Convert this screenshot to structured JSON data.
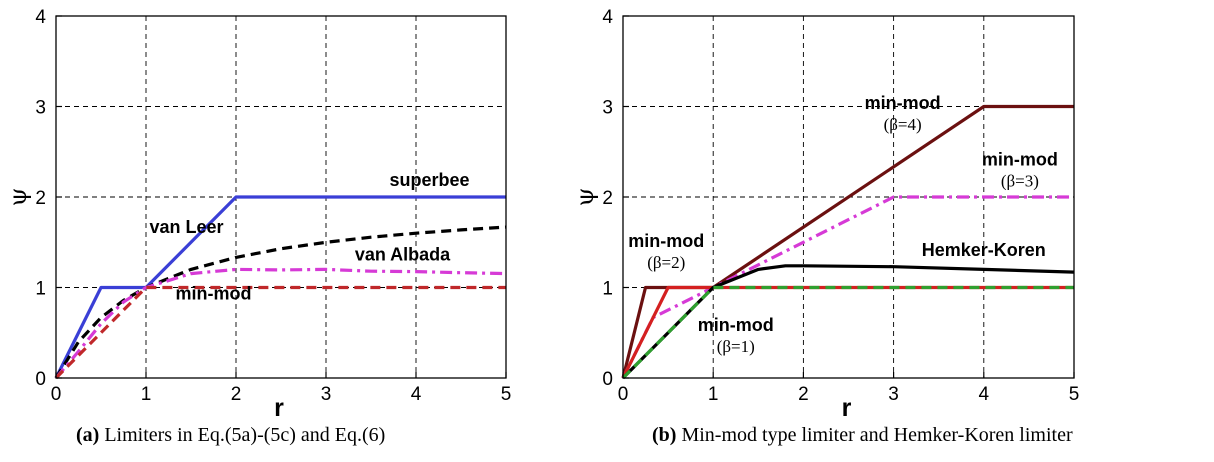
{
  "captions": [
    {
      "tag": "(a)",
      "text": " Limiters in Eq.(5a)-(5c) and Eq.(6)"
    },
    {
      "tag": "(b)",
      "text": " Min-mod type limiter and Hemker-Koren limiter"
    }
  ],
  "chart_data": [
    {
      "type": "line",
      "xlabel": "r",
      "ylabel": "ψ",
      "xlim": [
        0,
        5
      ],
      "ylim": [
        0,
        4
      ],
      "xticks": [
        "0",
        "1",
        "2",
        "3",
        "4",
        "5"
      ],
      "yticks": [
        "0",
        "1",
        "2",
        "3",
        "4"
      ],
      "grid": true,
      "series": [
        {
          "name": "superbee",
          "color": "#3a3fd6",
          "style": "solid",
          "x": [
            0,
            0.5,
            1,
            2,
            5
          ],
          "y": [
            0,
            1,
            1,
            2,
            2
          ]
        },
        {
          "name": "van Leer",
          "color": "#000000",
          "style": "dash",
          "x": [
            0,
            0.25,
            0.5,
            0.75,
            1,
            1.5,
            2,
            2.5,
            3,
            3.5,
            4,
            4.5,
            5
          ],
          "y": [
            0,
            0.4,
            0.667,
            0.857,
            1,
            1.2,
            1.333,
            1.429,
            1.5,
            1.556,
            1.6,
            1.636,
            1.667
          ]
        },
        {
          "name": "van Albada",
          "color": "#d63ad6",
          "style": "dashdot",
          "x": [
            0,
            0.25,
            0.5,
            0.75,
            1,
            1.5,
            2,
            2.5,
            3,
            3.5,
            4,
            4.5,
            5
          ],
          "y": [
            0,
            0.294,
            0.6,
            0.84,
            1,
            1.154,
            1.2,
            1.195,
            1.2,
            1.18,
            1.176,
            1.163,
            1.154
          ]
        },
        {
          "name": "min-mod",
          "color": "#c0282a",
          "style": "dash",
          "x": [
            0,
            1,
            5
          ],
          "y": [
            0,
            1,
            1
          ]
        }
      ],
      "annotations": [
        {
          "text": "superbee",
          "x": 4.15,
          "y": 2.12
        },
        {
          "text": "van Leer",
          "x": 1.45,
          "y": 1.6
        },
        {
          "text": "van Albada",
          "x": 3.85,
          "y": 1.3
        },
        {
          "text": "min-mod",
          "x": 1.75,
          "y": 0.87
        }
      ]
    },
    {
      "type": "line",
      "xlabel": "r",
      "ylabel": "ψ",
      "xlim": [
        0,
        5
      ],
      "ylim": [
        0,
        4
      ],
      "xticks": [
        "0",
        "1",
        "2",
        "3",
        "4",
        "5"
      ],
      "yticks": [
        "0",
        "1",
        "2",
        "3",
        "4"
      ],
      "grid": true,
      "series": [
        {
          "name": "min-mod (β=4)",
          "color": "#6b1010",
          "style": "solid",
          "x": [
            0,
            0.25,
            1,
            4,
            5
          ],
          "y": [
            0,
            1,
            1,
            3,
            3
          ]
        },
        {
          "name": "min-mod (β=3)",
          "color": "#d63ad6",
          "style": "dashdot",
          "x": [
            0,
            0.333,
            1,
            3,
            5
          ],
          "y": [
            0,
            0.667,
            1,
            2,
            2
          ]
        },
        {
          "name": "min-mod (β=2)",
          "color": "#d42020",
          "style": "solid",
          "x": [
            0,
            0.5,
            1,
            5
          ],
          "y": [
            0,
            1,
            1,
            1
          ]
        },
        {
          "name": "Hemker-Koren",
          "color": "#000000",
          "style": "solid",
          "x": [
            0,
            0.25,
            0.5,
            0.75,
            1,
            1.5,
            1.8,
            2,
            3,
            4,
            5
          ],
          "y": [
            0,
            0.25,
            0.5,
            0.75,
            1,
            1.2,
            1.24,
            1.24,
            1.23,
            1.2,
            1.17
          ]
        },
        {
          "name": "min-mod (β=1)",
          "color": "#2fa02f",
          "style": "dash",
          "x": [
            0,
            1,
            5
          ],
          "y": [
            0,
            1,
            1
          ]
        }
      ],
      "annotations": [
        {
          "text": "min-mod",
          "sub": "(β=4)",
          "x": 3.1,
          "y": 2.97
        },
        {
          "text": "min-mod",
          "sub": "(β=3)",
          "x": 4.4,
          "y": 2.35
        },
        {
          "text": "Hemker-Koren",
          "x": 4.0,
          "y": 1.35
        },
        {
          "text": "min-mod",
          "sub": "(β=2)",
          "x": 0.48,
          "y": 1.45
        },
        {
          "text": "min-mod",
          "sub": "(β=1)",
          "x": 1.25,
          "y": 0.52
        }
      ]
    }
  ]
}
